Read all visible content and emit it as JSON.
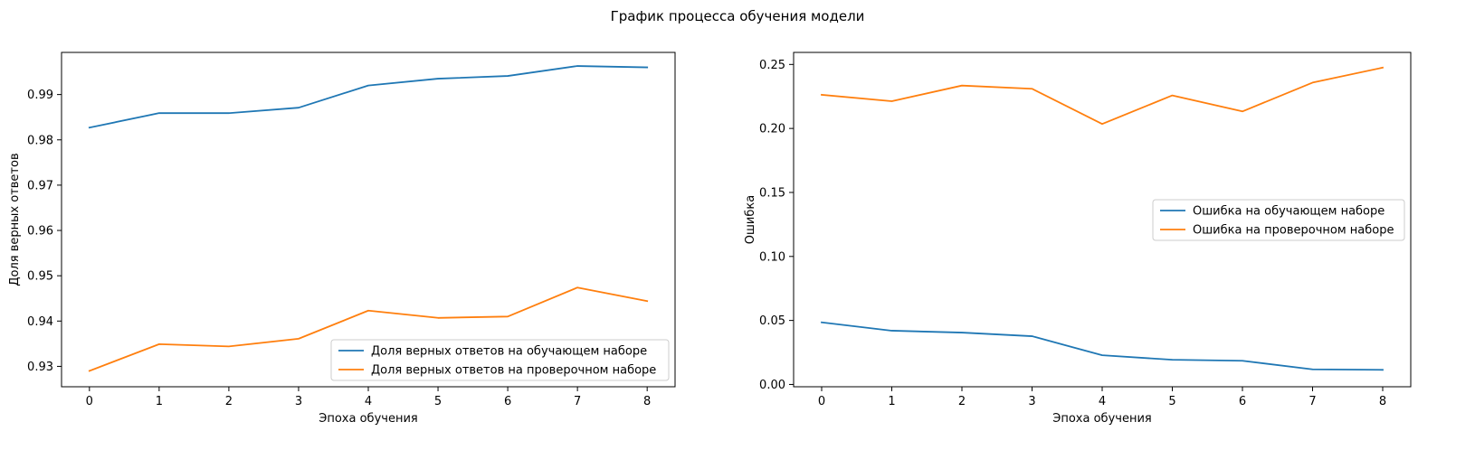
{
  "figure": {
    "suptitle": "График процесса обучения модели"
  },
  "chart_data": [
    {
      "type": "line",
      "xlabel": "Эпоха обучения",
      "ylabel": "Доля верных ответов",
      "x": [
        0,
        1,
        2,
        3,
        4,
        5,
        6,
        7,
        8
      ],
      "xticks": [
        "0",
        "1",
        "2",
        "3",
        "4",
        "5",
        "6",
        "7",
        "8"
      ],
      "yticks": [
        "0.93",
        "0.94",
        "0.95",
        "0.96",
        "0.97",
        "0.98",
        "0.99"
      ],
      "ytick_values": [
        0.93,
        0.94,
        0.95,
        0.96,
        0.97,
        0.98,
        0.99
      ],
      "xlim": [
        -0.4,
        8.4
      ],
      "ylim": [
        0.9255,
        0.9993
      ],
      "grid": false,
      "legend_position": "lower right",
      "series": [
        {
          "name": "Доля верных ответов на обучающем наборе",
          "color": "#1f77b4",
          "values": [
            0.9827,
            0.9859,
            0.9859,
            0.9871,
            0.992,
            0.9935,
            0.9941,
            0.9963,
            0.996
          ]
        },
        {
          "name": "Доля верных ответов на проверочном наборе",
          "color": "#ff7f0e",
          "values": [
            0.929,
            0.9349,
            0.9344,
            0.9361,
            0.9423,
            0.9407,
            0.941,
            0.9474,
            0.9444
          ]
        }
      ]
    },
    {
      "type": "line",
      "xlabel": "Эпоха обучения",
      "ylabel": "Ошибка",
      "x": [
        0,
        1,
        2,
        3,
        4,
        5,
        6,
        7,
        8
      ],
      "xticks": [
        "0",
        "1",
        "2",
        "3",
        "4",
        "5",
        "6",
        "7",
        "8"
      ],
      "yticks": [
        "0.00",
        "0.05",
        "0.10",
        "0.15",
        "0.20",
        "0.25"
      ],
      "ytick_values": [
        0.0,
        0.05,
        0.1,
        0.15,
        0.2,
        0.25
      ],
      "xlim": [
        -0.4,
        8.4
      ],
      "ylim": [
        -0.0018,
        0.2594
      ],
      "grid": false,
      "legend_position": "center right",
      "series": [
        {
          "name": "Ошибка на обучающем наборе",
          "color": "#1f77b4",
          "values": [
            0.0485,
            0.042,
            0.0405,
            0.0377,
            0.0228,
            0.0193,
            0.0185,
            0.0118,
            0.0114
          ]
        },
        {
          "name": "Ошибка на проверочном наборе",
          "color": "#ff7f0e",
          "values": [
            0.2263,
            0.2213,
            0.2335,
            0.231,
            0.2035,
            0.2258,
            0.2133,
            0.2358,
            0.2475
          ]
        }
      ]
    }
  ]
}
